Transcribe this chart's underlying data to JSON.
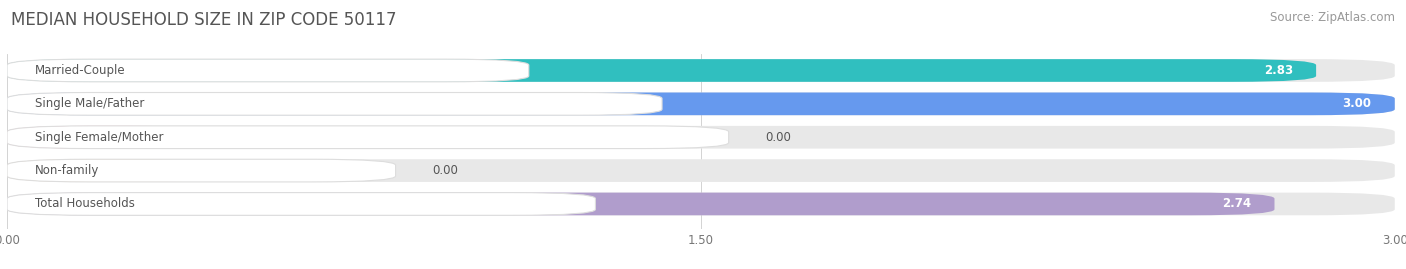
{
  "title": "MEDIAN HOUSEHOLD SIZE IN ZIP CODE 50117",
  "source": "Source: ZipAtlas.com",
  "categories": [
    "Married-Couple",
    "Single Male/Father",
    "Single Female/Mother",
    "Non-family",
    "Total Households"
  ],
  "values": [
    2.83,
    3.0,
    0.0,
    0.0,
    2.74
  ],
  "bar_colors": [
    "#30bfbf",
    "#6699ee",
    "#f788aa",
    "#f5c892",
    "#b09dcc"
  ],
  "xlim_max": 3.0,
  "xticks": [
    0.0,
    1.5,
    3.0
  ],
  "xtick_labels": [
    "0.00",
    "1.50",
    "3.00"
  ],
  "background_color": "#ffffff",
  "bar_background_color": "#e8e8e8",
  "title_fontsize": 12,
  "source_fontsize": 8.5,
  "label_fontsize": 8.5,
  "value_fontsize": 8.5,
  "label_box_color": "#ffffff",
  "label_box_edge_color": "#dddddd",
  "label_text_color": "#555555",
  "value_text_color_inside": "#ffffff",
  "value_text_color_outside": "#555555"
}
